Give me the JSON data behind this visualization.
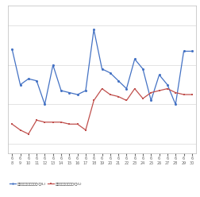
{
  "x_labels_line1": [
    "6",
    "6",
    "6",
    "6",
    "6",
    "6",
    "6",
    "6",
    "6",
    "6",
    "6",
    "6",
    "6",
    "6",
    "6",
    "6",
    "6",
    "6",
    "6",
    "6",
    "6",
    "6",
    "6"
  ],
  "x_labels_line2": [
    "8",
    "9",
    "10",
    "11",
    "12",
    "13",
    "14",
    "15",
    "16",
    "17",
    "18",
    "19",
    "20",
    "21",
    "22",
    "23",
    "24",
    "25",
    "26",
    "27",
    "28",
    "29",
    "30"
  ],
  "blue_values": [
    148,
    130,
    133,
    132,
    120,
    140,
    127,
    126,
    125,
    127,
    158,
    138,
    136,
    132,
    128,
    143,
    138,
    122,
    135,
    130,
    120,
    147,
    147
  ],
  "red_values": [
    110,
    107,
    105,
    112,
    111,
    111,
    111,
    110,
    110,
    107,
    122,
    128,
    125,
    124,
    122,
    128,
    123,
    126,
    127,
    128,
    126,
    125,
    125
  ],
  "blue_color": "#4472c4",
  "red_color": "#c0504d",
  "background_color": "#ffffff",
  "grid_color": "#d8d8d8",
  "legend_blue": "レギュラー・県板価格(円/L)",
  "legend_red": "レギュラー実売価格(円/L)",
  "ylim_min": 95,
  "ylim_max": 170
}
